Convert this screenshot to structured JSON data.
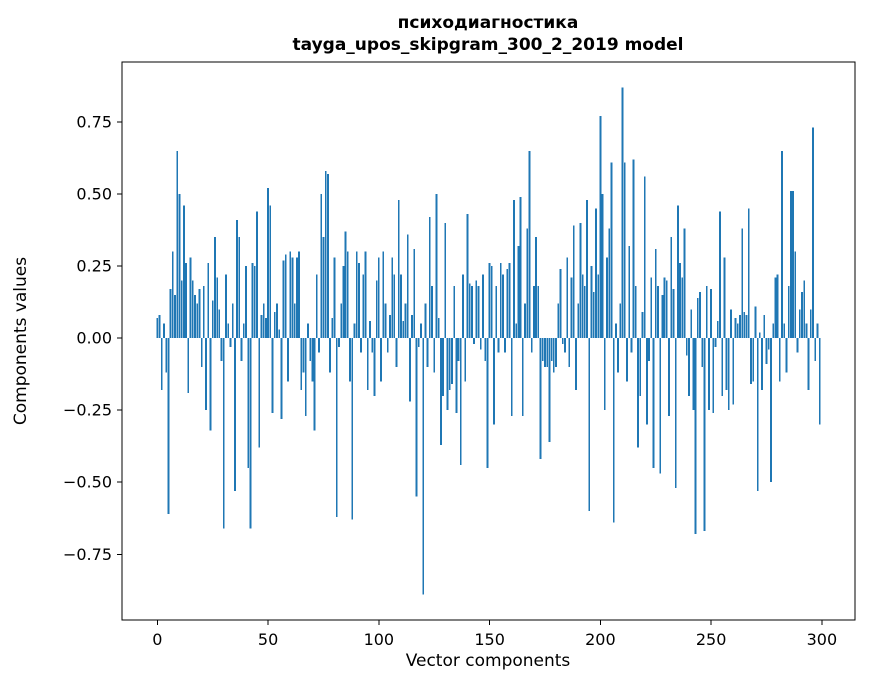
{
  "chart_data": {
    "type": "bar",
    "title_line1": "психодиагностика",
    "title_line2": "tayga_upos_skipgram_300_2_2019 model",
    "title": "психодиагностика\ntayga_upos_skipgram_300_2_2019 model",
    "xlabel": "Vector components",
    "ylabel": "Components values",
    "legend": "none",
    "grid": false,
    "bar_color": "#1f77b4",
    "xlim": [
      -15.95,
      314.95
    ],
    "ylim": [
      -0.978,
      0.958
    ],
    "xticks": [
      0,
      50,
      100,
      150,
      200,
      250,
      300
    ],
    "xtick_labels": [
      "0",
      "50",
      "100",
      "150",
      "200",
      "250",
      "300"
    ],
    "yticks": [
      0.75,
      0.5,
      0.25,
      0.0,
      -0.25,
      -0.5,
      -0.75
    ],
    "ytick_labels": [
      "0.75",
      "0.50",
      "0.25",
      "0.00",
      "−0.25",
      "−0.50",
      "−0.75"
    ],
    "x_start": 0,
    "values": [
      0.07,
      0.08,
      -0.18,
      0.05,
      -0.12,
      -0.61,
      0.17,
      0.3,
      0.15,
      0.65,
      0.5,
      0.2,
      0.46,
      0.26,
      -0.19,
      0.28,
      0.2,
      0.15,
      0.12,
      0.17,
      -0.1,
      0.18,
      -0.25,
      0.26,
      -0.32,
      0.13,
      0.35,
      0.21,
      0.1,
      -0.08,
      -0.66,
      0.22,
      0.05,
      -0.03,
      0.12,
      -0.53,
      0.41,
      0.35,
      -0.08,
      0.05,
      0.25,
      -0.45,
      -0.66,
      0.26,
      0.25,
      0.44,
      -0.38,
      0.08,
      0.12,
      0.07,
      0.52,
      0.46,
      -0.26,
      0.09,
      0.12,
      0.03,
      -0.28,
      0.27,
      0.29,
      -0.15,
      0.3,
      0.28,
      0.12,
      0.28,
      0.3,
      -0.18,
      -0.12,
      -0.27,
      0.05,
      -0.08,
      -0.15,
      -0.32,
      0.22,
      -0.05,
      0.5,
      0.35,
      0.58,
      0.57,
      -0.12,
      0.07,
      0.28,
      -0.62,
      -0.03,
      0.12,
      0.25,
      0.37,
      0.3,
      -0.15,
      -0.63,
      0.05,
      0.3,
      0.26,
      -0.05,
      0.22,
      0.3,
      -0.18,
      0.06,
      -0.05,
      -0.2,
      0.2,
      0.28,
      -0.15,
      0.3,
      0.12,
      -0.05,
      0.08,
      0.28,
      0.22,
      -0.1,
      0.48,
      0.22,
      0.06,
      0.12,
      0.36,
      -0.22,
      0.08,
      0.31,
      -0.55,
      -0.03,
      0.05,
      -0.89,
      0.12,
      -0.1,
      0.42,
      0.18,
      -0.12,
      0.5,
      0.07,
      -0.37,
      -0.2,
      0.4,
      -0.25,
      -0.18,
      -0.16,
      0.18,
      -0.26,
      -0.08,
      -0.44,
      0.22,
      -0.15,
      0.43,
      0.19,
      0.18,
      -0.02,
      0.2,
      0.18,
      -0.04,
      0.22,
      -0.08,
      -0.45,
      0.26,
      0.25,
      -0.3,
      0.18,
      -0.05,
      0.26,
      0.22,
      -0.05,
      0.24,
      0.26,
      -0.27,
      0.48,
      0.05,
      0.32,
      0.49,
      -0.27,
      0.12,
      0.38,
      0.65,
      -0.05,
      0.18,
      0.35,
      0.18,
      -0.42,
      -0.08,
      -0.1,
      -0.1,
      -0.36,
      -0.08,
      -0.12,
      -0.1,
      0.12,
      0.24,
      -0.02,
      -0.05,
      0.28,
      -0.1,
      0.21,
      0.39,
      -0.18,
      0.12,
      0.4,
      0.22,
      0.18,
      0.48,
      -0.6,
      0.25,
      0.16,
      0.45,
      0.22,
      0.77,
      0.5,
      -0.25,
      0.28,
      0.38,
      0.61,
      -0.64,
      0.05,
      -0.12,
      0.12,
      0.87,
      0.61,
      -0.15,
      0.32,
      -0.05,
      0.62,
      0.18,
      -0.38,
      -0.2,
      0.09,
      0.56,
      -0.3,
      -0.08,
      0.21,
      -0.45,
      0.31,
      0.18,
      -0.47,
      0.15,
      0.21,
      0.2,
      -0.27,
      0.35,
      0.17,
      -0.52,
      0.46,
      0.26,
      0.21,
      0.38,
      -0.06,
      -0.2,
      0.1,
      -0.25,
      -0.68,
      0.14,
      0.16,
      -0.1,
      -0.67,
      0.18,
      -0.25,
      0.17,
      -0.26,
      -0.03,
      0.06,
      0.44,
      -0.2,
      0.28,
      -0.18,
      -0.25,
      0.1,
      -0.23,
      0.07,
      0.05,
      0.08,
      0.38,
      0.09,
      0.08,
      0.45,
      -0.16,
      -0.15,
      0.11,
      -0.53,
      0.02,
      -0.18,
      0.08,
      -0.09,
      -0.04,
      -0.5,
      0.05,
      0.21,
      0.22,
      -0.15,
      0.65,
      0.05,
      -0.12,
      0.18,
      0.51,
      0.51,
      0.3,
      -0.05,
      0.1,
      0.16,
      0.2,
      0.05,
      -0.18,
      0.1,
      0.73,
      -0.08,
      0.05,
      -0.3
    ]
  }
}
